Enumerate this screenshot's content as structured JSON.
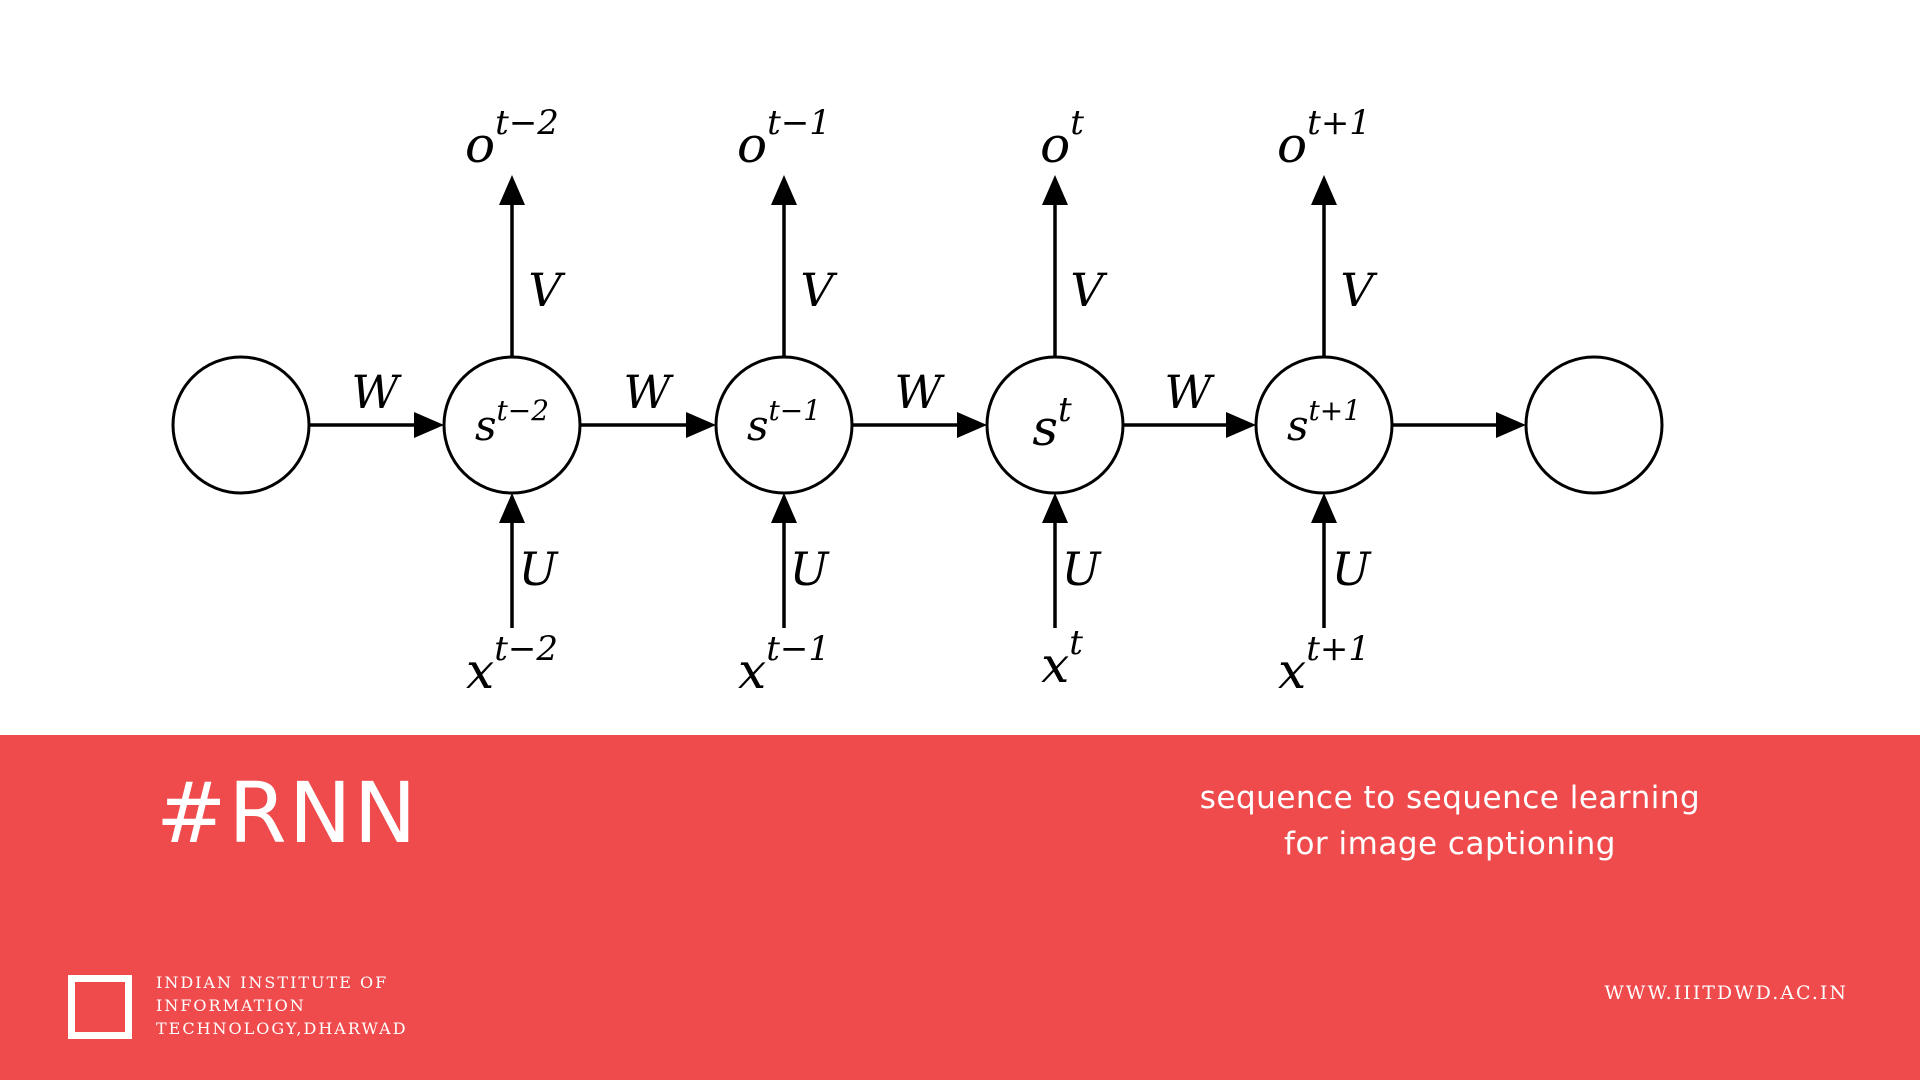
{
  "diagram": {
    "weights": {
      "recurrent": "W",
      "output": "V",
      "input": "U"
    },
    "timesteps": [
      {
        "state": "s",
        "output": "o",
        "input": "x",
        "index": "t−2"
      },
      {
        "state": "s",
        "output": "o",
        "input": "x",
        "index": "t−1"
      },
      {
        "state": "s",
        "output": "o",
        "input": "x",
        "index": "t"
      },
      {
        "state": "s",
        "output": "o",
        "input": "x",
        "index": "t+1"
      }
    ]
  },
  "banner": {
    "title": "#RNN",
    "subtitle_line1": "sequence to sequence learning",
    "subtitle_line2": "for image captioning",
    "institute_line1": "Indian Institute of",
    "institute_line2": "Information",
    "institute_line3": "Technology,Dharwad",
    "website": "WWW.IIITDWD.AC.IN"
  },
  "colors": {
    "banner_background": "#ef4b4d",
    "text_on_banner": "#ffffff",
    "diagram_stroke": "#000000"
  },
  "icons": {
    "logo": "hollow-square-logo-icon"
  }
}
